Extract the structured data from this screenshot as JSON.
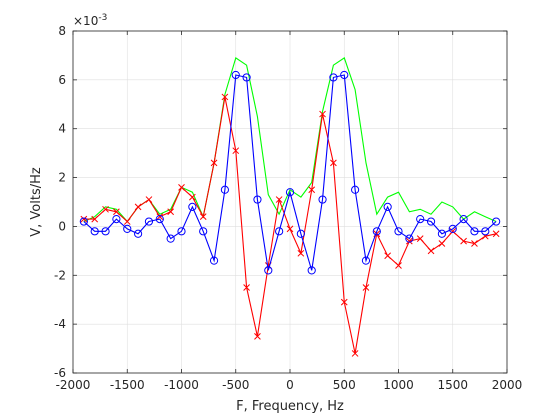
{
  "chart_data": {
    "type": "line",
    "xlabel": "F, Frequency, Hz",
    "ylabel": "V, Volts/Hz",
    "exponent_label": "×10",
    "exponent_power": "-3",
    "xlim": [
      -2000,
      2000
    ],
    "ylim": [
      -0.006,
      0.008
    ],
    "xticks": [
      -2000,
      -1500,
      -1000,
      -500,
      0,
      500,
      1000,
      1500,
      2000
    ],
    "xtick_labels": [
      "-2000",
      "-1500",
      "-1000",
      "-500",
      "0",
      "500",
      "1000",
      "1500",
      "2000"
    ],
    "yticks": [
      -0.006,
      -0.004,
      -0.002,
      0,
      0.002,
      0.004,
      0.006,
      0.008
    ],
    "ytick_labels": [
      "-6",
      "-4",
      "-2",
      "0",
      "2",
      "4",
      "6",
      "8"
    ],
    "grid": true,
    "x": [
      -1900,
      -1800,
      -1700,
      -1600,
      -1500,
      -1400,
      -1300,
      -1200,
      -1100,
      -1000,
      -900,
      -800,
      -700,
      -600,
      -500,
      -400,
      -300,
      -200,
      -100,
      0,
      100,
      200,
      300,
      400,
      500,
      600,
      700,
      800,
      900,
      1000,
      1100,
      1200,
      1300,
      1400,
      1500,
      1600,
      1700,
      1800,
      1900
    ],
    "series": [
      {
        "color": "#00ff00",
        "marker": "none",
        "values": [
          0.0002,
          0.0004,
          0.0008,
          0.0007,
          0.0002,
          0.0008,
          0.0011,
          0.0005,
          0.0007,
          0.0016,
          0.0014,
          0.0004,
          0.0026,
          0.0054,
          0.0069,
          0.0066,
          0.0045,
          0.0013,
          0.0005,
          0.0015,
          0.0012,
          0.0018,
          0.0047,
          0.0066,
          0.0069,
          0.0056,
          0.0026,
          0.0005,
          0.0012,
          0.0014,
          0.0006,
          0.0007,
          0.0005,
          0.001,
          0.0008,
          0.0003,
          0.0006,
          0.0004,
          0.0002
        ]
      },
      {
        "color": "#ff0000",
        "marker": "x",
        "values": [
          0.0003,
          0.0003,
          0.0007,
          0.0006,
          0.0002,
          0.0008,
          0.0011,
          0.0004,
          0.0006,
          0.0016,
          0.0012,
          0.0004,
          0.0026,
          0.0053,
          0.0031,
          -0.0025,
          -0.0045,
          -0.0016,
          0.0011,
          -0.0001,
          -0.0011,
          0.0015,
          0.0046,
          0.0026,
          -0.0031,
          -0.0052,
          -0.0025,
          -0.0003,
          -0.0012,
          -0.0016,
          -0.0006,
          -0.0005,
          -0.001,
          -0.0007,
          -0.0002,
          -0.0006,
          -0.0007,
          -0.0004,
          -0.0003
        ]
      },
      {
        "color": "#0000ff",
        "marker": "o",
        "values": [
          0.0002,
          -0.0002,
          -0.0002,
          0.0003,
          -0.0001,
          -0.0003,
          0.0002,
          0.0003,
          -0.0005,
          -0.0002,
          0.0008,
          -0.0002,
          -0.0014,
          0.0015,
          0.0062,
          0.0061,
          0.0011,
          -0.0018,
          -0.0002,
          0.0014,
          -0.0003,
          -0.0018,
          0.0011,
          0.0061,
          0.0062,
          0.0015,
          -0.0014,
          -0.0002,
          0.0008,
          -0.0002,
          -0.0005,
          0.0003,
          0.0002,
          -0.0003,
          -0.0001,
          0.0003,
          -0.0002,
          -0.0002,
          0.0002
        ]
      }
    ]
  }
}
